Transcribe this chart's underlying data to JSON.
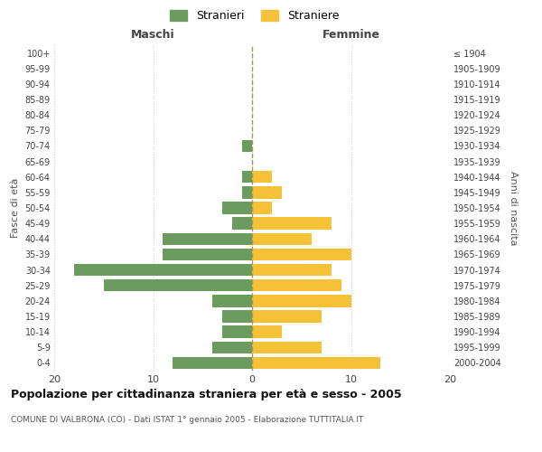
{
  "age_groups": [
    "0-4",
    "5-9",
    "10-14",
    "15-19",
    "20-24",
    "25-29",
    "30-34",
    "35-39",
    "40-44",
    "45-49",
    "50-54",
    "55-59",
    "60-64",
    "65-69",
    "70-74",
    "75-79",
    "80-84",
    "85-89",
    "90-94",
    "95-99",
    "100+"
  ],
  "birth_years": [
    "2000-2004",
    "1995-1999",
    "1990-1994",
    "1985-1989",
    "1980-1984",
    "1975-1979",
    "1970-1974",
    "1965-1969",
    "1960-1964",
    "1955-1959",
    "1950-1954",
    "1945-1949",
    "1940-1944",
    "1935-1939",
    "1930-1934",
    "1925-1929",
    "1920-1924",
    "1915-1919",
    "1910-1914",
    "1905-1909",
    "≤ 1904"
  ],
  "maschi": [
    8,
    4,
    3,
    3,
    4,
    15,
    18,
    9,
    9,
    2,
    3,
    1,
    1,
    0,
    1,
    0,
    0,
    0,
    0,
    0,
    0
  ],
  "femmine": [
    13,
    7,
    3,
    7,
    10,
    9,
    8,
    10,
    6,
    8,
    2,
    3,
    2,
    0,
    0,
    0,
    0,
    0,
    0,
    0,
    0
  ],
  "male_color": "#6b9b5e",
  "female_color": "#f5c136",
  "xlim": 20,
  "title": "Popolazione per cittadinanza straniera per età e sesso - 2005",
  "subtitle": "COMUNE DI VALBRONA (CO) - Dati ISTAT 1° gennaio 2005 - Elaborazione TUTTITALIA.IT",
  "xlabel_left": "Maschi",
  "xlabel_right": "Femmine",
  "ylabel_left": "Fasce di età",
  "ylabel_right": "Anni di nascita",
  "legend_male": "Stranieri",
  "legend_female": "Straniere",
  "bg_color": "#ffffff",
  "grid_color": "#cccccc"
}
